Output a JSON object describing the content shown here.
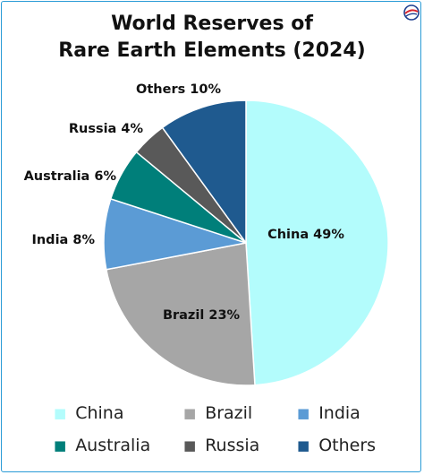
{
  "chart_data": {
    "type": "pie",
    "title_lines": [
      "World Reserves of",
      "Rare Earth Elements (2024)"
    ],
    "categories": [
      "China",
      "Brazil",
      "India",
      "Australia",
      "Russia",
      "Others"
    ],
    "values": [
      49,
      23,
      8,
      6,
      4,
      10
    ],
    "slice_labels": [
      "China 49%",
      "Brazil 23%",
      "India 8%",
      "Australia 6%",
      "Russia 4%",
      "Others 10%"
    ],
    "colors": [
      "#b3fcfc",
      "#a6a6a6",
      "#5b9bd5",
      "#007f7a",
      "#595959",
      "#1f5a8f"
    ],
    "legend": {
      "position": "bottom",
      "items": [
        {
          "label": "China",
          "color": "#b3fcfc"
        },
        {
          "label": "Brazil",
          "color": "#a6a6a6"
        },
        {
          "label": "India",
          "color": "#5b9bd5"
        },
        {
          "label": "Australia",
          "color": "#007f7a"
        },
        {
          "label": "Russia",
          "color": "#595959"
        },
        {
          "label": "Others",
          "color": "#1f5a8f"
        }
      ]
    }
  },
  "frame_color": "#2a9bd6",
  "logo": {
    "icon": "brand-logo-icon",
    "colors": [
      "#1f3f8f",
      "#d9232d"
    ]
  }
}
